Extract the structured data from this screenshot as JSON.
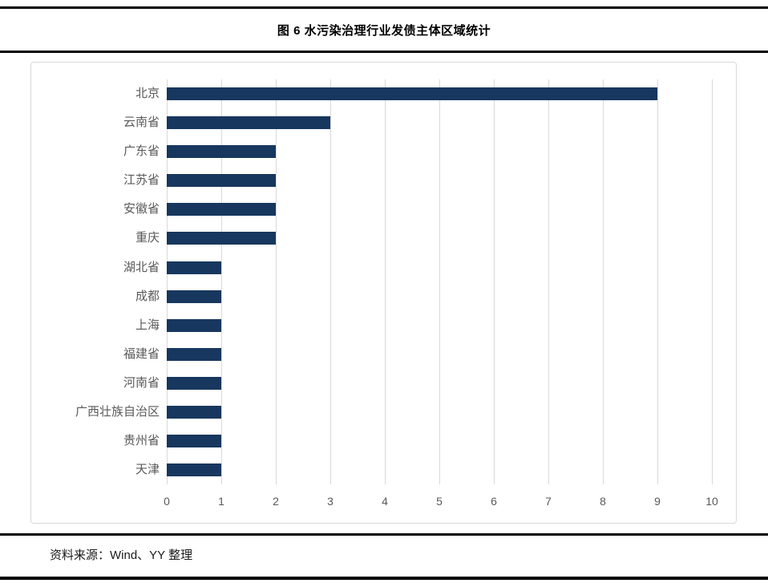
{
  "page": {
    "title": "图 6 水污染治理行业发债主体区域统计",
    "source_note": "资料来源：Wind、YY 整理"
  },
  "colors": {
    "bar": "#17375E",
    "gridline": "#D9D9D9",
    "frame_border": "#D9D9D9",
    "axis_text": "#595959",
    "category_text": "#595959",
    "title_text": "#000000",
    "rule": "#000000",
    "background": "#FFFFFF"
  },
  "chart_data": {
    "type": "bar",
    "orientation": "horizontal",
    "title": "图 6 水污染治理行业发债主体区域统计",
    "categories": [
      "北京",
      "云南省",
      "广东省",
      "江苏省",
      "安徽省",
      "重庆",
      "湖北省",
      "成都",
      "上海",
      "福建省",
      "河南省",
      "广西壮族自治区",
      "贵州省",
      "天津"
    ],
    "values": [
      9,
      3,
      2,
      2,
      2,
      2,
      1,
      1,
      1,
      1,
      1,
      1,
      1,
      1
    ],
    "xlabel": "",
    "ylabel": "",
    "xlim": [
      0,
      10
    ],
    "x_ticks": [
      0,
      1,
      2,
      3,
      4,
      5,
      6,
      7,
      8,
      9,
      10
    ],
    "grid": true,
    "legend": false
  }
}
